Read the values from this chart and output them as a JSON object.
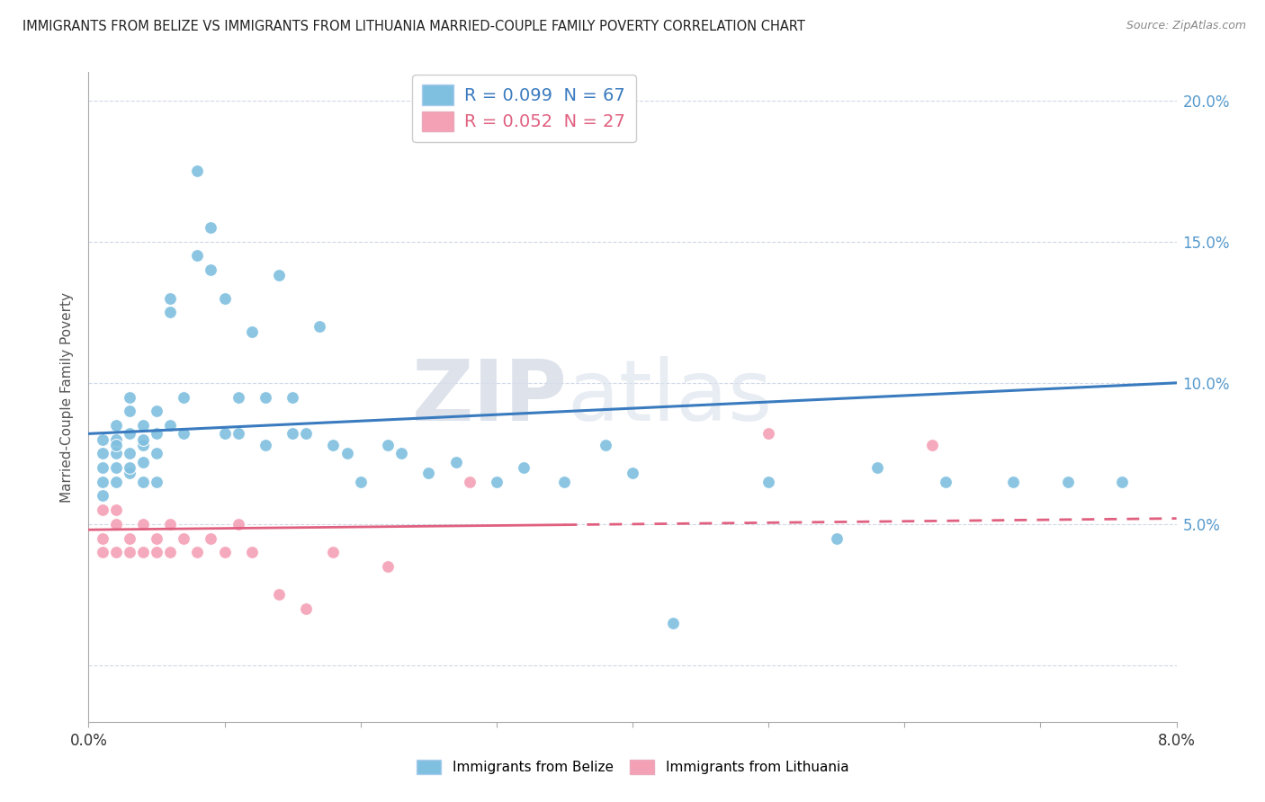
{
  "title": "IMMIGRANTS FROM BELIZE VS IMMIGRANTS FROM LITHUANIA MARRIED-COUPLE FAMILY POVERTY CORRELATION CHART",
  "source": "Source: ZipAtlas.com",
  "ylabel": "Married-Couple Family Poverty",
  "xlim": [
    0.0,
    0.08
  ],
  "ylim": [
    -0.02,
    0.21
  ],
  "xticks": [
    0.0,
    0.01,
    0.02,
    0.03,
    0.04,
    0.05,
    0.06,
    0.07,
    0.08
  ],
  "yticks": [
    0.0,
    0.05,
    0.1,
    0.15,
    0.2
  ],
  "belize_color": "#7fbfdf",
  "lithuania_color": "#f4a0b5",
  "belize_line_color": "#3a7bbf",
  "lithuania_line_color": "#e06080",
  "belize_R": 0.099,
  "belize_N": 67,
  "lithuania_R": 0.052,
  "lithuania_N": 27,
  "watermark_zip": "ZIP",
  "watermark_atlas": "atlas",
  "belize_x": [
    0.001,
    0.001,
    0.001,
    0.001,
    0.001,
    0.002,
    0.002,
    0.002,
    0.002,
    0.002,
    0.002,
    0.003,
    0.003,
    0.003,
    0.003,
    0.003,
    0.003,
    0.004,
    0.004,
    0.004,
    0.004,
    0.004,
    0.005,
    0.005,
    0.005,
    0.005,
    0.006,
    0.006,
    0.006,
    0.007,
    0.007,
    0.008,
    0.008,
    0.009,
    0.009,
    0.01,
    0.01,
    0.011,
    0.011,
    0.012,
    0.013,
    0.013,
    0.014,
    0.015,
    0.015,
    0.016,
    0.017,
    0.018,
    0.019,
    0.02,
    0.022,
    0.023,
    0.025,
    0.027,
    0.03,
    0.032,
    0.035,
    0.038,
    0.04,
    0.043,
    0.05,
    0.055,
    0.058,
    0.063,
    0.068,
    0.072,
    0.076
  ],
  "belize_y": [
    0.075,
    0.08,
    0.065,
    0.07,
    0.06,
    0.08,
    0.075,
    0.07,
    0.065,
    0.085,
    0.078,
    0.09,
    0.082,
    0.075,
    0.068,
    0.095,
    0.07,
    0.085,
    0.078,
    0.072,
    0.065,
    0.08,
    0.09,
    0.082,
    0.075,
    0.065,
    0.085,
    0.125,
    0.13,
    0.082,
    0.095,
    0.145,
    0.175,
    0.155,
    0.14,
    0.082,
    0.13,
    0.082,
    0.095,
    0.118,
    0.078,
    0.095,
    0.138,
    0.082,
    0.095,
    0.082,
    0.12,
    0.078,
    0.075,
    0.065,
    0.078,
    0.075,
    0.068,
    0.072,
    0.065,
    0.07,
    0.065,
    0.078,
    0.068,
    0.015,
    0.065,
    0.045,
    0.07,
    0.065,
    0.065,
    0.065,
    0.065
  ],
  "lithuania_x": [
    0.001,
    0.001,
    0.001,
    0.002,
    0.002,
    0.002,
    0.003,
    0.003,
    0.004,
    0.004,
    0.005,
    0.005,
    0.006,
    0.006,
    0.007,
    0.008,
    0.009,
    0.01,
    0.011,
    0.012,
    0.014,
    0.016,
    0.018,
    0.022,
    0.028,
    0.05,
    0.062
  ],
  "lithuania_y": [
    0.045,
    0.04,
    0.055,
    0.05,
    0.04,
    0.055,
    0.045,
    0.04,
    0.05,
    0.04,
    0.045,
    0.04,
    0.05,
    0.04,
    0.045,
    0.04,
    0.045,
    0.04,
    0.05,
    0.04,
    0.025,
    0.02,
    0.04,
    0.035,
    0.065,
    0.082,
    0.078
  ]
}
